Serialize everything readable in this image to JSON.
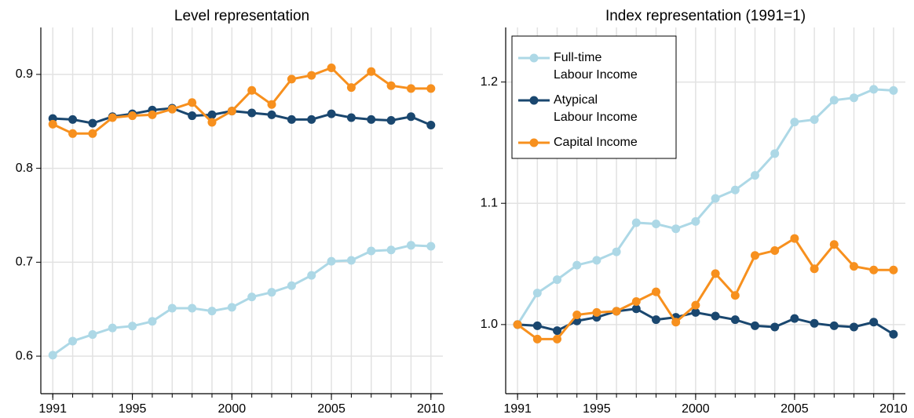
{
  "chart_data": [
    {
      "type": "line",
      "title": "Level representation",
      "x": [
        1991,
        1992,
        1993,
        1994,
        1995,
        1996,
        1997,
        1998,
        1999,
        2000,
        2001,
        2002,
        2003,
        2004,
        2005,
        2006,
        2007,
        2008,
        2009,
        2010
      ],
      "xlim": [
        1990.4,
        2010.6
      ],
      "xticks": [
        1991,
        1995,
        2000,
        2005,
        2010
      ],
      "ylim": [
        0.56,
        0.95
      ],
      "yticks": [
        0.6,
        0.7,
        0.8,
        0.9
      ],
      "grid": true,
      "series": [
        {
          "color": "#add8e6",
          "values": [
            0.601,
            0.616,
            0.623,
            0.63,
            0.632,
            0.637,
            0.651,
            0.651,
            0.648,
            0.652,
            0.663,
            0.668,
            0.675,
            0.686,
            0.701,
            0.702,
            0.712,
            0.713,
            0.718,
            0.717
          ]
        },
        {
          "color": "#1a476f",
          "values": [
            0.853,
            0.852,
            0.848,
            0.855,
            0.858,
            0.862,
            0.864,
            0.856,
            0.857,
            0.861,
            0.859,
            0.857,
            0.852,
            0.852,
            0.858,
            0.854,
            0.852,
            0.851,
            0.855,
            0.846
          ]
        },
        {
          "color": "#f7901e",
          "values": [
            0.847,
            0.837,
            0.837,
            0.854,
            0.856,
            0.857,
            0.863,
            0.87,
            0.849,
            0.861,
            0.883,
            0.868,
            0.895,
            0.899,
            0.907,
            0.886,
            0.903,
            0.888,
            0.885,
            0.885
          ]
        }
      ]
    },
    {
      "type": "line",
      "title": "Index representation (1991=1)",
      "x": [
        1991,
        1992,
        1993,
        1994,
        1995,
        1996,
        1997,
        1998,
        1999,
        2000,
        2001,
        2002,
        2003,
        2004,
        2005,
        2006,
        2007,
        2008,
        2009,
        2010
      ],
      "xlim": [
        1990.4,
        2010.6
      ],
      "xticks": [
        1991,
        1995,
        2000,
        2005,
        2010
      ],
      "ylim": [
        0.943,
        1.245
      ],
      "yticks": [
        {
          "value": 1,
          "label": "1.0"
        },
        1.1,
        1.2
      ],
      "grid": true,
      "legend": "top-left",
      "series": [
        {
          "name": "Full-time\nLabour Income",
          "color": "#add8e6",
          "values": [
            1.0,
            1.026,
            1.037,
            1.049,
            1.053,
            1.06,
            1.084,
            1.083,
            1.079,
            1.085,
            1.104,
            1.111,
            1.123,
            1.141,
            1.167,
            1.169,
            1.185,
            1.187,
            1.194,
            1.193
          ]
        },
        {
          "name": "Atypical\nLabour Income",
          "color": "#1a476f",
          "values": [
            1.0,
            0.999,
            0.995,
            1.003,
            1.006,
            1.011,
            1.013,
            1.004,
            1.006,
            1.01,
            1.007,
            1.004,
            0.999,
            0.998,
            1.005,
            1.001,
            0.999,
            0.998,
            1.002,
            0.992
          ]
        },
        {
          "name": "Capital Income",
          "color": "#f7901e",
          "values": [
            1.0,
            0.988,
            0.988,
            1.008,
            1.01,
            1.011,
            1.019,
            1.027,
            1.002,
            1.016,
            1.042,
            1.024,
            1.057,
            1.061,
            1.071,
            1.046,
            1.066,
            1.048,
            1.045,
            1.045
          ]
        }
      ]
    }
  ]
}
